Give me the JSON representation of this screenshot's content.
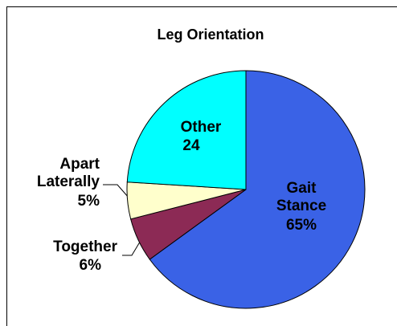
{
  "chart_data": {
    "type": "pie",
    "title": "Leg Orientation",
    "categories": [
      "Gait Stance",
      "Together",
      "Apart Laterally",
      "Other"
    ],
    "values": [
      65,
      6,
      5,
      24
    ],
    "value_labels": [
      "65%",
      "6%",
      "5%",
      "24"
    ],
    "colors": [
      "#3a62e6",
      "#8c2a55",
      "#ffffcc",
      "#00ffff"
    ]
  }
}
